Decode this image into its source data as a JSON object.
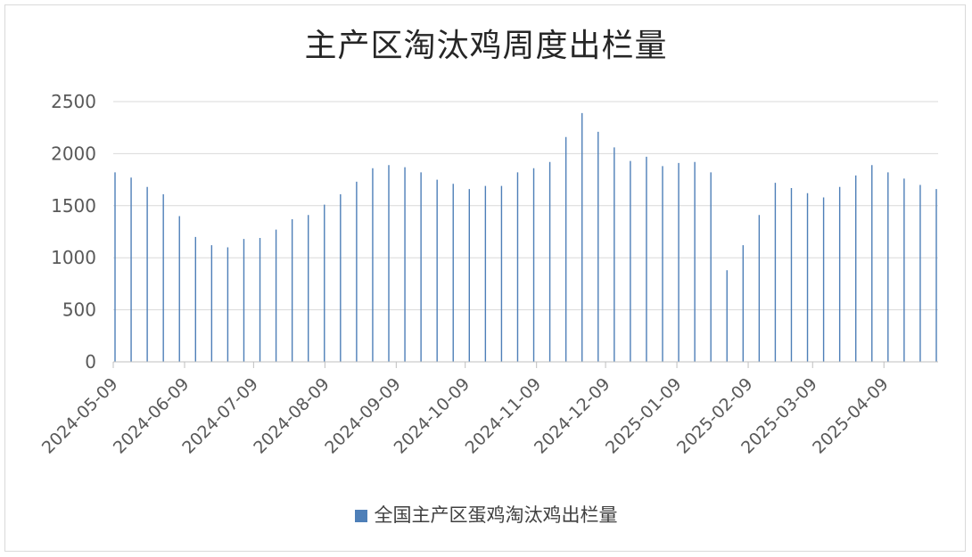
{
  "chart_data": {
    "type": "bar",
    "title": "主产区淘汰鸡周度出栏量",
    "xlabel": "",
    "ylabel": "",
    "ylim": [
      0,
      2500
    ],
    "yticks": [
      0,
      500,
      1000,
      1500,
      2000,
      2500
    ],
    "grid": true,
    "legend_position": "bottom",
    "x_tick_labels": [
      "2024-05-09",
      "2024-06-09",
      "2024-07-09",
      "2024-08-09",
      "2024-09-09",
      "2024-10-09",
      "2024-11-09",
      "2024-12-09",
      "2025-01-09",
      "2025-02-09",
      "2025-03-09",
      "2025-04-09"
    ],
    "series": [
      {
        "name": "全国主产区蛋鸡淘汰鸡出栏量",
        "color": "#4e7fb8",
        "points": [
          {
            "x": "2024-05-09",
            "y": 1820
          },
          {
            "x": "2024-05-16",
            "y": 1770
          },
          {
            "x": "2024-05-23",
            "y": 1680
          },
          {
            "x": "2024-05-30",
            "y": 1610
          },
          {
            "x": "2024-06-06",
            "y": 1400
          },
          {
            "x": "2024-06-13",
            "y": 1200
          },
          {
            "x": "2024-06-20",
            "y": 1120
          },
          {
            "x": "2024-06-27",
            "y": 1100
          },
          {
            "x": "2024-07-04",
            "y": 1180
          },
          {
            "x": "2024-07-11",
            "y": 1190
          },
          {
            "x": "2024-07-18",
            "y": 1270
          },
          {
            "x": "2024-07-25",
            "y": 1370
          },
          {
            "x": "2024-08-01",
            "y": 1410
          },
          {
            "x": "2024-08-08",
            "y": 1510
          },
          {
            "x": "2024-08-15",
            "y": 1610
          },
          {
            "x": "2024-08-22",
            "y": 1730
          },
          {
            "x": "2024-08-29",
            "y": 1860
          },
          {
            "x": "2024-09-05",
            "y": 1890
          },
          {
            "x": "2024-09-12",
            "y": 1870
          },
          {
            "x": "2024-09-19",
            "y": 1820
          },
          {
            "x": "2024-09-26",
            "y": 1750
          },
          {
            "x": "2024-10-03",
            "y": 1710
          },
          {
            "x": "2024-10-10",
            "y": 1660
          },
          {
            "x": "2024-10-17",
            "y": 1690
          },
          {
            "x": "2024-10-24",
            "y": 1690
          },
          {
            "x": "2024-10-31",
            "y": 1820
          },
          {
            "x": "2024-11-07",
            "y": 1860
          },
          {
            "x": "2024-11-14",
            "y": 1920
          },
          {
            "x": "2024-11-21",
            "y": 2160
          },
          {
            "x": "2024-11-28",
            "y": 2390
          },
          {
            "x": "2024-12-05",
            "y": 2210
          },
          {
            "x": "2024-12-12",
            "y": 2060
          },
          {
            "x": "2024-12-19",
            "y": 1930
          },
          {
            "x": "2024-12-26",
            "y": 1970
          },
          {
            "x": "2025-01-02",
            "y": 1880
          },
          {
            "x": "2025-01-09",
            "y": 1910
          },
          {
            "x": "2025-01-16",
            "y": 1920
          },
          {
            "x": "2025-01-23",
            "y": 1820
          },
          {
            "x": "2025-01-30",
            "y": 880
          },
          {
            "x": "2025-02-06",
            "y": 1120
          },
          {
            "x": "2025-02-13",
            "y": 1410
          },
          {
            "x": "2025-02-20",
            "y": 1720
          },
          {
            "x": "2025-02-27",
            "y": 1670
          },
          {
            "x": "2025-03-06",
            "y": 1620
          },
          {
            "x": "2025-03-13",
            "y": 1580
          },
          {
            "x": "2025-03-20",
            "y": 1680
          },
          {
            "x": "2025-03-27",
            "y": 1790
          },
          {
            "x": "2025-04-03",
            "y": 1890
          },
          {
            "x": "2025-04-10",
            "y": 1820
          },
          {
            "x": "2025-04-17",
            "y": 1760
          },
          {
            "x": "2025-04-24",
            "y": 1700
          },
          {
            "x": "2025-05-01",
            "y": 1660
          }
        ]
      }
    ]
  }
}
